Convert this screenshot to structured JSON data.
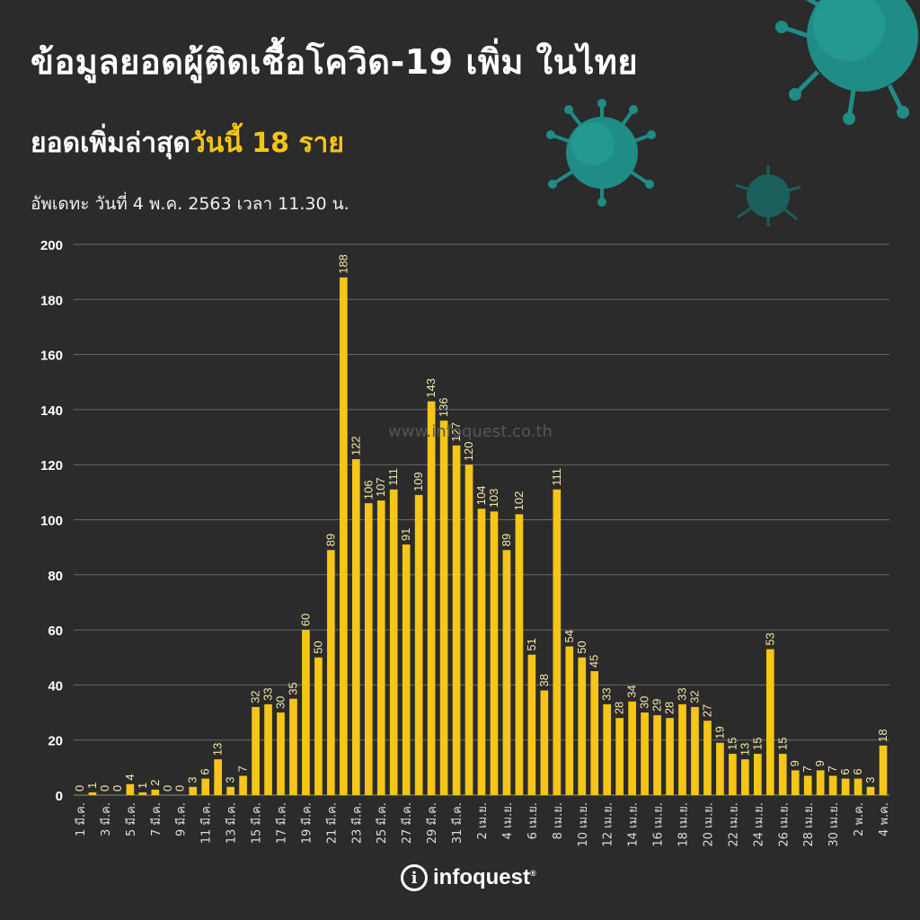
{
  "header": {
    "title": "ข้อมูลยอดผู้ติดเชื้อโควิด-19 เพิ่ม ในไทย",
    "subtitle_prefix": "ยอดเพิ่มล่าสุด",
    "subtitle_highlight": "วันนี้  18 ราย",
    "updated": "อัพเดทะ วันที่ 4 พ.ค. 2563 เวลา 11.30 น."
  },
  "watermark": "www.infoquest.co.th",
  "logo": {
    "mark": "i",
    "text": "infoquest",
    "reg": "®"
  },
  "colors": {
    "background": "#2b2b2b",
    "bar": "#f5c518",
    "grid": "#6a6a6a",
    "text": "#ffffff",
    "virus": "#1f8c86"
  },
  "chart_data": {
    "type": "bar",
    "ylim": [
      0,
      200
    ],
    "yticks": [
      0,
      20,
      40,
      60,
      80,
      100,
      120,
      140,
      160,
      180,
      200
    ],
    "grid": true,
    "x_tick_labels": [
      "1 มี.ค.",
      "3 มี.ค.",
      "5 มี.ค.",
      "7 มี.ค.",
      "9 มี.ค.",
      "11 มี.ค.",
      "13 มี.ค.",
      "15 มี.ค.",
      "17 มี.ค.",
      "19 มี.ค.",
      "21 มี.ค.",
      "23 มี.ค.",
      "25 มี.ค.",
      "27 มี.ค.",
      "29 มี.ค.",
      "31 มี.ค.",
      "2 เม.ย.",
      "4 เม.ย.",
      "6 เม.ย.",
      "8 เม.ย.",
      "10 เม.ย.",
      "12 เม.ย.",
      "14 เม.ย.",
      "16 เม.ย.",
      "18 เม.ย.",
      "20 เม.ย.",
      "22 เม.ย.",
      "24 เม.ย.",
      "26 เม.ย.",
      "28 เม.ย.",
      "30 เม.ย.",
      "2 พ.ค.",
      "4 พ.ค."
    ],
    "values": [
      0,
      1,
      0,
      0,
      4,
      1,
      2,
      0,
      0,
      3,
      6,
      13,
      3,
      7,
      32,
      33,
      30,
      35,
      60,
      50,
      89,
      188,
      122,
      106,
      107,
      111,
      91,
      109,
      143,
      136,
      127,
      120,
      104,
      103,
      89,
      102,
      51,
      38,
      111,
      54,
      50,
      45,
      33,
      28,
      34,
      30,
      29,
      28,
      33,
      32,
      27,
      19,
      15,
      13,
      15,
      53,
      15,
      9,
      7,
      9,
      7,
      6,
      6,
      3,
      18
    ]
  }
}
